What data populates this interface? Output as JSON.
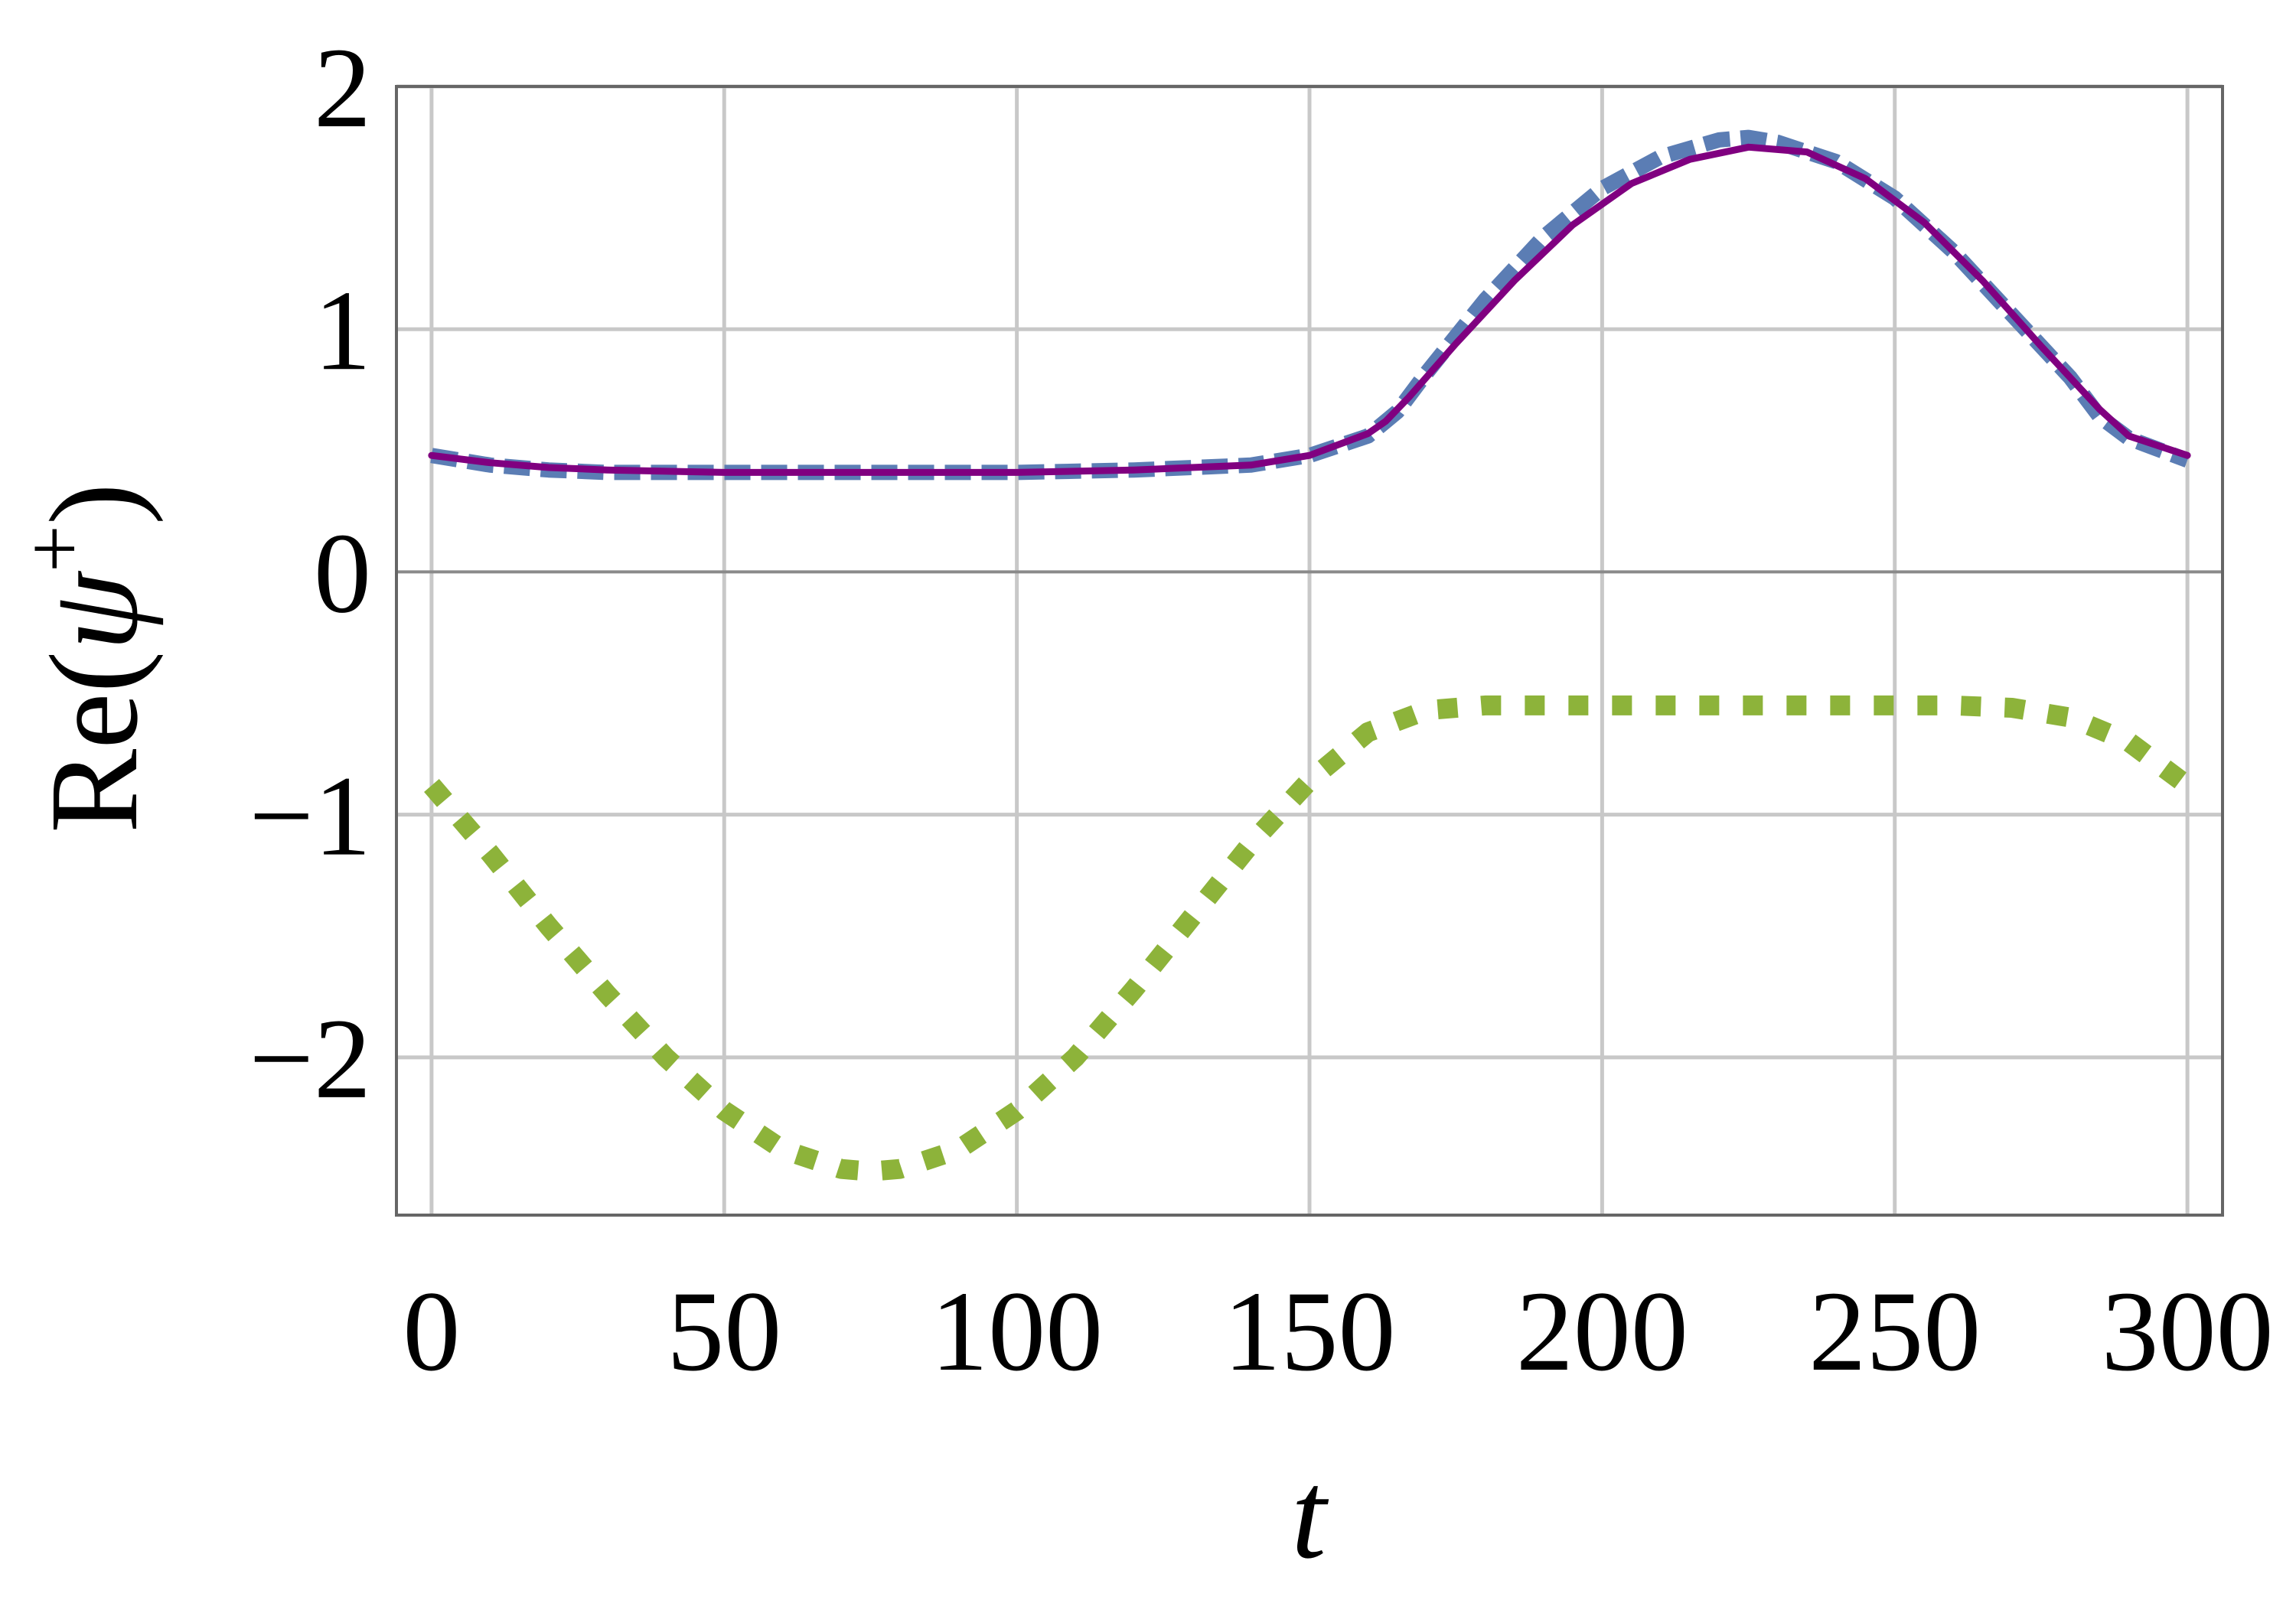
{
  "chart_data": {
    "type": "line",
    "xlabel": "t",
    "ylabel": "Re(ψ⁺)",
    "ylabel_parts": {
      "prefix": "Re(",
      "symbol": "ψ",
      "superscript": "+",
      "suffix": ")"
    },
    "xlim": [
      -6,
      306
    ],
    "ylim": [
      -2.65,
      2.0
    ],
    "xticks": [
      0,
      50,
      100,
      150,
      200,
      250,
      300
    ],
    "yticks": [
      -2,
      -1,
      0,
      1,
      2
    ],
    "xtick_labels": [
      "0",
      "50",
      "100",
      "150",
      "200",
      "250",
      "300"
    ],
    "ytick_labels": [
      "−2",
      "−1",
      "0",
      "1",
      "2"
    ],
    "grid": true,
    "legend": "none",
    "series": [
      {
        "style": "dashed",
        "color": "#5b7db4",
        "x": [
          0,
          10,
          20,
          30,
          50,
          75,
          100,
          120,
          140,
          150,
          160,
          165,
          170,
          180,
          190,
          200,
          210,
          220,
          225,
          230,
          240,
          250,
          260,
          270,
          280,
          285,
          290,
          300
        ],
        "y": [
          0.48,
          0.44,
          0.42,
          0.41,
          0.41,
          0.41,
          0.41,
          0.42,
          0.44,
          0.48,
          0.56,
          0.66,
          0.82,
          1.12,
          1.38,
          1.58,
          1.71,
          1.78,
          1.79,
          1.77,
          1.69,
          1.54,
          1.32,
          1.06,
          0.8,
          0.64,
          0.55,
          0.46
        ]
      },
      {
        "style": "solid",
        "color": "#800080",
        "x": [
          0,
          10,
          20,
          30,
          50,
          75,
          100,
          120,
          140,
          150,
          160,
          163,
          167,
          175,
          185,
          195,
          205,
          215,
          225,
          235,
          245,
          255,
          265,
          275,
          285,
          290,
          300
        ],
        "y": [
          0.48,
          0.45,
          0.43,
          0.42,
          0.41,
          0.41,
          0.41,
          0.42,
          0.44,
          0.48,
          0.57,
          0.62,
          0.72,
          0.94,
          1.2,
          1.43,
          1.6,
          1.7,
          1.75,
          1.73,
          1.62,
          1.44,
          1.2,
          0.93,
          0.67,
          0.56,
          0.48
        ]
      },
      {
        "style": "dotted",
        "color": "#8db33a",
        "x": [
          0,
          10,
          20,
          30,
          40,
          50,
          60,
          70,
          75,
          80,
          90,
          100,
          110,
          120,
          130,
          140,
          150,
          160,
          170,
          180,
          200,
          220,
          240,
          260,
          270,
          280,
          290,
          300
        ],
        "y": [
          -0.88,
          -1.16,
          -1.46,
          -1.74,
          -2.0,
          -2.22,
          -2.38,
          -2.46,
          -2.47,
          -2.46,
          -2.38,
          -2.22,
          -2.0,
          -1.72,
          -1.42,
          -1.12,
          -0.86,
          -0.66,
          -0.57,
          -0.55,
          -0.55,
          -0.55,
          -0.55,
          -0.55,
          -0.56,
          -0.6,
          -0.7,
          -0.88
        ]
      }
    ]
  }
}
